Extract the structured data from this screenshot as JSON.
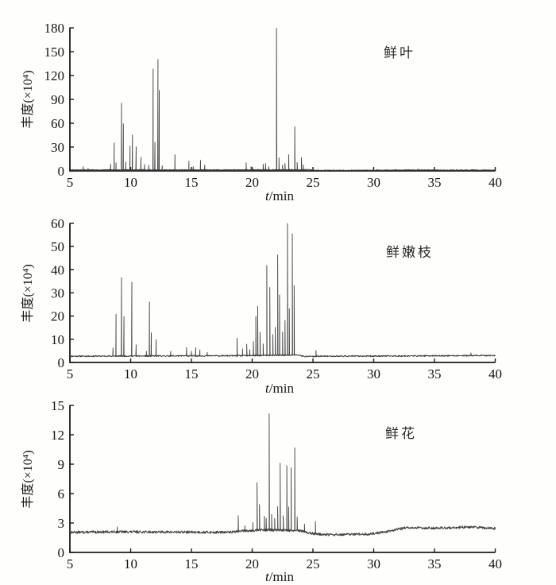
{
  "figure": {
    "background": "#fefefd",
    "trace_color": "#3f3f3f",
    "axis_color": "#1c1c1c",
    "tick_label_color": "#141414"
  },
  "chart_data": [
    {
      "type": "line",
      "label": "鲜叶",
      "xlabel": "t/min",
      "xlabel_italic": "t",
      "xlabel_rest": "/min",
      "ylabel": "丰度(×10⁴)",
      "xlim": [
        5,
        40
      ],
      "ylim": [
        0,
        180
      ],
      "xticks": [
        5,
        10,
        15,
        20,
        25,
        30,
        35,
        40
      ],
      "yticks": [
        0,
        30,
        60,
        90,
        120,
        150,
        180
      ],
      "grid": false,
      "legend": "none",
      "seed": 7,
      "noise_amplitude": 0.55,
      "peak_halfwidth": 0.07,
      "baseline_drift": [
        [
          5,
          1.2
        ],
        [
          19,
          1.3
        ],
        [
          24.6,
          1.5
        ],
        [
          25.2,
          0.7
        ],
        [
          29,
          0.8
        ],
        [
          33,
          1.2
        ],
        [
          36,
          1.0
        ],
        [
          40,
          1.0
        ]
      ],
      "peaks_t_h": [
        [
          6.1,
          4
        ],
        [
          6.5,
          2
        ],
        [
          8.35,
          7
        ],
        [
          8.65,
          34
        ],
        [
          8.8,
          9
        ],
        [
          9.25,
          84
        ],
        [
          9.4,
          58
        ],
        [
          9.6,
          10
        ],
        [
          9.95,
          30
        ],
        [
          10.15,
          44
        ],
        [
          10.45,
          29
        ],
        [
          10.85,
          16
        ],
        [
          11.15,
          7
        ],
        [
          11.5,
          6
        ],
        [
          11.85,
          127
        ],
        [
          12.0,
          35
        ],
        [
          12.25,
          139
        ],
        [
          12.35,
          100
        ],
        [
          12.6,
          5
        ],
        [
          13.65,
          19
        ],
        [
          14.8,
          11
        ],
        [
          15.15,
          4
        ],
        [
          15.75,
          12
        ],
        [
          16.1,
          6
        ],
        [
          19.5,
          9
        ],
        [
          19.9,
          4
        ],
        [
          20.9,
          7
        ],
        [
          21.1,
          8
        ],
        [
          21.35,
          4
        ],
        [
          22.0,
          178
        ],
        [
          22.2,
          15
        ],
        [
          22.5,
          6
        ],
        [
          22.7,
          8
        ],
        [
          23.0,
          19
        ],
        [
          23.5,
          54
        ],
        [
          23.7,
          9
        ],
        [
          24.05,
          15
        ],
        [
          24.2,
          6
        ],
        [
          33.6,
          1
        ]
      ]
    },
    {
      "type": "line",
      "label": "鲜嫩枝",
      "xlabel": "t/min",
      "xlabel_italic": "t",
      "xlabel_rest": "/min",
      "ylabel": "丰度(×10⁴)",
      "xlim": [
        5,
        40
      ],
      "ylim": [
        0,
        60
      ],
      "xticks": [
        5,
        10,
        15,
        20,
        25,
        30,
        35,
        40
      ],
      "yticks": [
        0,
        10,
        20,
        30,
        40,
        50,
        60
      ],
      "grid": false,
      "legend": "none",
      "seed": 11,
      "noise_amplitude": 0.28,
      "peak_halfwidth": 0.07,
      "baseline_drift": [
        [
          5,
          2.7
        ],
        [
          19,
          2.9
        ],
        [
          23.8,
          3.2
        ],
        [
          24.3,
          2.6
        ],
        [
          26,
          2.7
        ],
        [
          32,
          2.8
        ],
        [
          40,
          3.0
        ]
      ],
      "peaks_t_h": [
        [
          8.55,
          3.5
        ],
        [
          8.8,
          18
        ],
        [
          9.25,
          33.8
        ],
        [
          9.45,
          17
        ],
        [
          10.1,
          31.8
        ],
        [
          10.45,
          4.8
        ],
        [
          11.3,
          2
        ],
        [
          11.55,
          23.3
        ],
        [
          11.7,
          10
        ],
        [
          12.1,
          7
        ],
        [
          13.3,
          2
        ],
        [
          14.6,
          3.6
        ],
        [
          15.0,
          2
        ],
        [
          15.35,
          3.5
        ],
        [
          15.7,
          2.6
        ],
        [
          16.3,
          1.5
        ],
        [
          18.75,
          7.6
        ],
        [
          19.2,
          3
        ],
        [
          19.55,
          5
        ],
        [
          19.8,
          2.5
        ],
        [
          20.1,
          6
        ],
        [
          20.3,
          16.8
        ],
        [
          20.45,
          21.3
        ],
        [
          20.65,
          10
        ],
        [
          20.9,
          5
        ],
        [
          21.2,
          38.8
        ],
        [
          21.45,
          29.3
        ],
        [
          21.7,
          9
        ],
        [
          21.9,
          12
        ],
        [
          22.1,
          43.3
        ],
        [
          22.25,
          26
        ],
        [
          22.5,
          10
        ],
        [
          22.7,
          15
        ],
        [
          22.9,
          56.8
        ],
        [
          23.05,
          20
        ],
        [
          23.3,
          52.3
        ],
        [
          23.45,
          30
        ],
        [
          25.25,
          2.5
        ],
        [
          38.0,
          1.2
        ]
      ]
    },
    {
      "type": "line",
      "label": "鲜花",
      "xlabel": "t/min",
      "xlabel_italic": "t",
      "xlabel_rest": "/min",
      "ylabel": "丰度(×10⁴)",
      "xlim": [
        5,
        40
      ],
      "ylim": [
        0,
        15
      ],
      "xticks": [
        5,
        10,
        15,
        20,
        25,
        30,
        35,
        40
      ],
      "yticks": [
        0,
        3,
        6,
        9,
        12,
        15
      ],
      "grid": false,
      "legend": "none",
      "seed": 13,
      "noise_amplitude": 0.13,
      "peak_halfwidth": 0.06,
      "baseline_drift": [
        [
          5,
          2.05
        ],
        [
          9,
          2.1
        ],
        [
          18,
          2.05
        ],
        [
          19.3,
          2.2
        ],
        [
          21,
          2.3
        ],
        [
          24,
          2.2
        ],
        [
          24.8,
          1.95
        ],
        [
          26,
          1.8
        ],
        [
          29.5,
          1.85
        ],
        [
          31,
          2.1
        ],
        [
          32.5,
          2.5
        ],
        [
          36,
          2.5
        ],
        [
          38,
          2.6
        ],
        [
          40,
          2.45
        ]
      ],
      "peaks_t_h": [
        [
          8.9,
          0.5
        ],
        [
          18.85,
          1.6
        ],
        [
          19.4,
          0.5
        ],
        [
          20.05,
          0.8
        ],
        [
          20.4,
          4.85
        ],
        [
          20.6,
          2.6
        ],
        [
          21.0,
          1.4
        ],
        [
          21.15,
          1.2
        ],
        [
          21.4,
          11.85
        ],
        [
          21.6,
          1.6
        ],
        [
          21.85,
          1.2
        ],
        [
          22.1,
          2.4
        ],
        [
          22.3,
          6.85
        ],
        [
          22.55,
          1.5
        ],
        [
          22.85,
          6.6
        ],
        [
          23.0,
          2.4
        ],
        [
          23.2,
          6.4
        ],
        [
          23.5,
          8.45
        ],
        [
          23.7,
          1.4
        ],
        [
          24.3,
          0.8
        ],
        [
          25.2,
          1.25
        ]
      ]
    }
  ]
}
